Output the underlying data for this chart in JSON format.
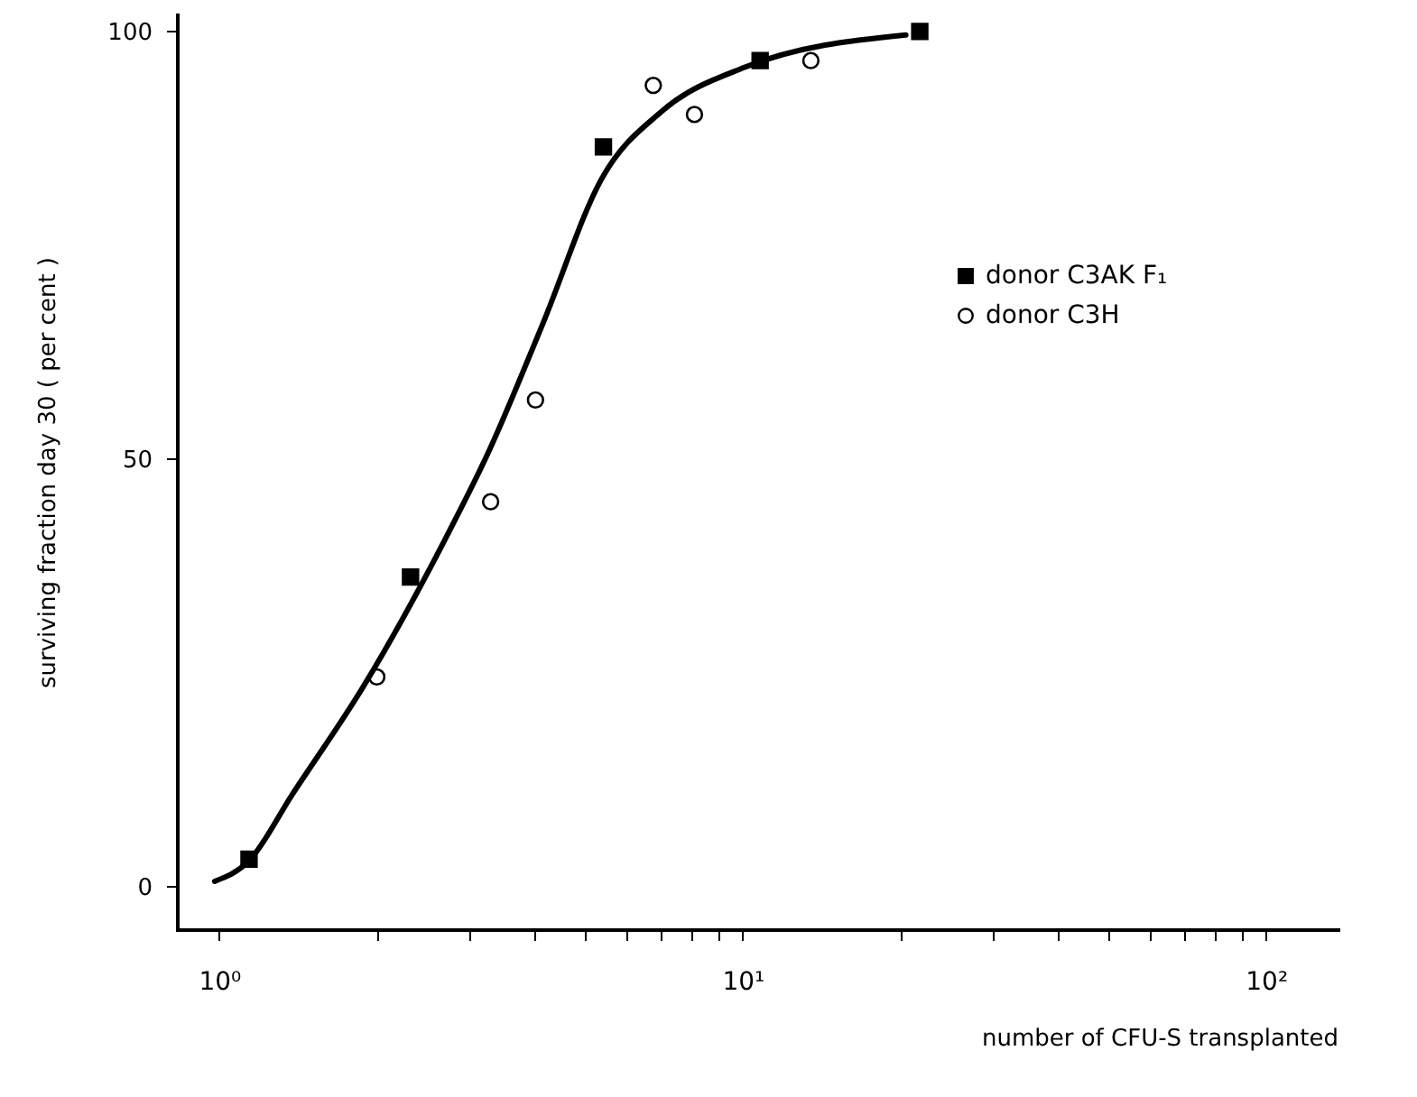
{
  "chart_data": {
    "type": "scatter",
    "xlabel": "number of CFU-S transplanted",
    "ylabel": "surviving fraction day 30  ( per cent )",
    "log": "x",
    "xlim": [
      0.83,
      137
    ],
    "ylim": [
      -5,
      102
    ],
    "xticks": [
      {
        "value": 1,
        "label": "10⁰"
      },
      {
        "value": 2,
        "label": null
      },
      {
        "value": 3,
        "label": null
      },
      {
        "value": 4,
        "label": null
      },
      {
        "value": 5,
        "label": null
      },
      {
        "value": 6,
        "label": null
      },
      {
        "value": 7,
        "label": null
      },
      {
        "value": 8,
        "label": null
      },
      {
        "value": 9,
        "label": null
      },
      {
        "value": 10,
        "label": "10¹"
      },
      {
        "value": 20,
        "label": null
      },
      {
        "value": 30,
        "label": null
      },
      {
        "value": 40,
        "label": null
      },
      {
        "value": 50,
        "label": null
      },
      {
        "value": 60,
        "label": null
      },
      {
        "value": 70,
        "label": null
      },
      {
        "value": 80,
        "label": null
      },
      {
        "value": 90,
        "label": null
      },
      {
        "value": 100,
        "label": "10²"
      }
    ],
    "yticks": [
      0,
      50,
      100
    ],
    "grid": false,
    "legend": "top right",
    "series": [
      {
        "name": "donor C3AK F₁",
        "color": "#000000",
        "marker": "square",
        "x": [
          1.14,
          2.32,
          5.42,
          10.8,
          21.8
        ],
        "values": [
          3.2,
          36.2,
          86.5,
          96.6,
          100
        ]
      },
      {
        "name": "donor C3H",
        "color": "#000000",
        "marker": "circle",
        "x": [
          2.0,
          3.3,
          4.02,
          6.75,
          8.09,
          13.5
        ],
        "values": [
          24.5,
          45,
          56.9,
          93.7,
          90.3,
          96.6
        ]
      },
      {
        "type": "line",
        "color": "#000000",
        "line_style": "solid",
        "x": [
          0.98,
          1.14,
          1.38,
          1.89,
          2.69,
          3.28,
          4.15,
          5.37,
          7.02,
          10.07,
          20.5
        ],
        "values": [
          0.6,
          3,
          10.8,
          23.5,
          40.4,
          51,
          65.8,
          82.7,
          90.7,
          95.8,
          99.6
        ]
      }
    ]
  }
}
